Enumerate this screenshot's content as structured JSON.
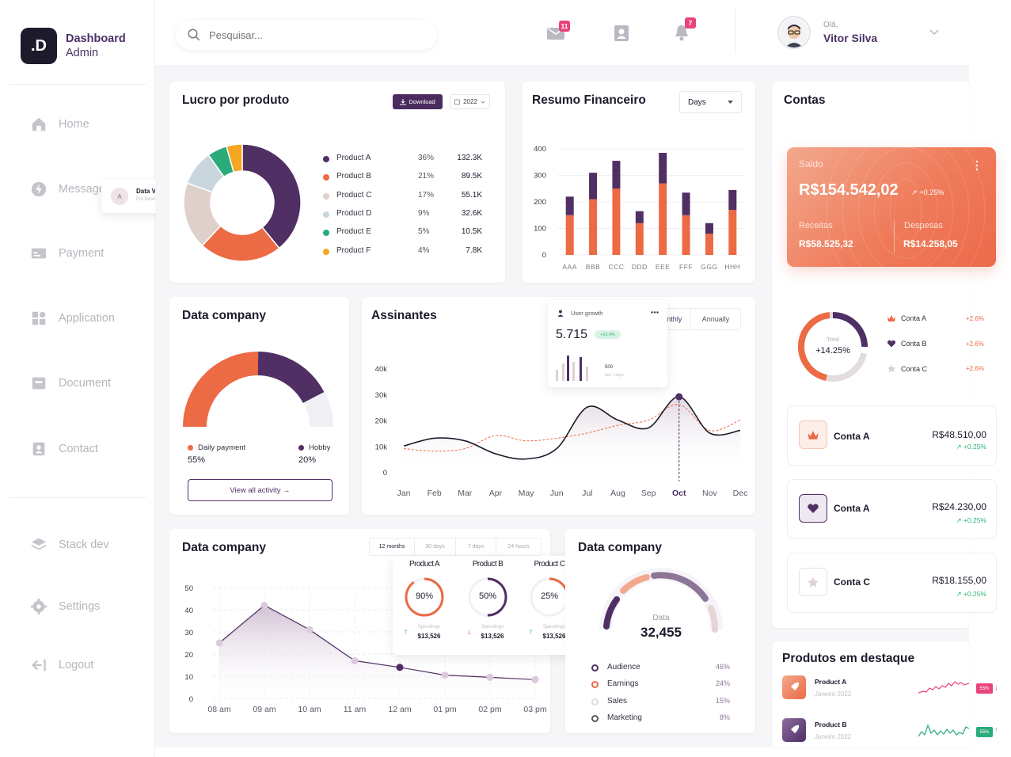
{
  "brand": {
    "logo": ".D",
    "title": "Dashboard",
    "subtitle": "Admin"
  },
  "nav": {
    "home": "Home",
    "message": "Message",
    "payment": "Payment",
    "application": "Application",
    "document": "Document",
    "contact": "Contact",
    "stack": "Stack dev",
    "settings": "Settings",
    "logout": "Logout"
  },
  "tooltip_data_view": {
    "avatar": "A",
    "title": "Data View",
    "subtitle": "Put Description"
  },
  "search": {
    "placeholder": "Pesquisar..."
  },
  "header": {
    "mail_badge": "11",
    "bell_badge": "7",
    "greeting": "Olá,",
    "user_name": "Vitor Silva"
  },
  "lucro": {
    "title": "Lucro por produto",
    "download": "Download",
    "year": "2022",
    "products": [
      {
        "name": "Product A",
        "pct": "36%",
        "value": "132.3K",
        "color": "#4f2f64"
      },
      {
        "name": "Product B",
        "pct": "21%",
        "value": "89.5K",
        "color": "#ec6a44"
      },
      {
        "name": "Product C",
        "pct": "17%",
        "value": "55.1K",
        "color": "#dfd0cc"
      },
      {
        "name": "Product D",
        "pct": "9%",
        "value": "32.6K",
        "color": "#c9d6de"
      },
      {
        "name": "Product E",
        "pct": "5%",
        "value": "10.5K",
        "color": "#2bab7a"
      },
      {
        "name": "Product F",
        "pct": "4%",
        "value": "7.8K",
        "color": "#f5a623"
      }
    ]
  },
  "chart_data": [
    {
      "type": "pie",
      "title": "Lucro por produto",
      "categories": [
        "Product A",
        "Product B",
        "Product C",
        "Product D",
        "Product E",
        "Product F"
      ],
      "values": [
        36,
        21,
        17,
        9,
        5,
        4
      ]
    },
    {
      "type": "bar",
      "title": "Resumo Financeiro",
      "categories": [
        "AAA",
        "BBB",
        "CCC",
        "DDD",
        "EEE",
        "FFF",
        "GGG",
        "HHH"
      ],
      "series": [
        {
          "values": [
            150,
            210,
            250,
            120,
            270,
            150,
            80,
            170
          ],
          "color": "#ec6a44"
        },
        {
          "values": [
            70,
            100,
            105,
            45,
            115,
            85,
            40,
            75
          ],
          "color": "#4f2f64"
        }
      ],
      "ylim": [
        0,
        400
      ],
      "yticks": [
        0,
        100,
        200,
        300,
        400
      ]
    },
    {
      "type": "line",
      "title": "Assinantes",
      "categories": [
        "Jan",
        "Feb",
        "Mar",
        "Apr",
        "May",
        "Jun",
        "Jul",
        "Aug",
        "Sep",
        "Oct",
        "Nov",
        "Dec"
      ],
      "series": [
        {
          "values": [
            10,
            13,
            12,
            7,
            5,
            9,
            25,
            20,
            17,
            29,
            15,
            16
          ],
          "color": "#1d1b2b"
        },
        {
          "values": [
            9,
            8,
            9,
            14,
            12,
            13,
            15,
            18,
            20,
            26,
            16,
            20
          ],
          "color": "#ec6a44"
        }
      ],
      "ylim": [
        0,
        40
      ],
      "yticks": [
        "0",
        "10k",
        "20k",
        "30k",
        "40k"
      ],
      "highlight": "Oct"
    },
    {
      "type": "area",
      "title": "Data company",
      "categories": [
        "08 am",
        "09 am",
        "10 am",
        "11 am",
        "12 am",
        "01 pm",
        "02 pm",
        "03 pm"
      ],
      "values": [
        25,
        42,
        31,
        17,
        14,
        10.5,
        9.5,
        8.5
      ],
      "ylim": [
        0,
        50
      ],
      "yticks": [
        0,
        10,
        20,
        30,
        40,
        50
      ]
    }
  ],
  "resumo": {
    "title": "Resumo Financeiro",
    "period": "Days"
  },
  "contas": {
    "title": "Contas",
    "saldo_label": "Saldo",
    "saldo": "R$154.542,02",
    "saldo_change": "+0.25%",
    "receitas_label": "Receitas",
    "receitas": "R$58.525,32",
    "despesas_label": "Despesas",
    "despesas": "R$14.258,05",
    "donut_label": "Total",
    "donut_value": "+14.25%",
    "legend": [
      {
        "name": "Conta A",
        "change": "+2.6%"
      },
      {
        "name": "Conta B",
        "change": "+2.6%"
      },
      {
        "name": "Conta C",
        "change": "+2.6%"
      }
    ],
    "cards": [
      {
        "name": "Conta A",
        "value": "R$48.510,00",
        "change": "+0.25%"
      },
      {
        "name": "Conta A",
        "value": "R$24.230,00",
        "change": "+0.25%"
      },
      {
        "name": "Conta C",
        "value": "R$18.155,00",
        "change": "+0.25%"
      }
    ]
  },
  "data_company_1": {
    "title": "Data company",
    "legend": [
      {
        "name": "Daily payment",
        "value": "55%"
      },
      {
        "name": "Hobby",
        "value": "20%"
      }
    ],
    "button": "View all activity →"
  },
  "assinantes": {
    "title": "Assinantes",
    "tab_monthly": "Monthly",
    "tab_annually": "Annually",
    "popup": {
      "title": "User growth",
      "value": "5.715",
      "badge": "+10.4%",
      "count": "500",
      "sub": "last 7 days"
    }
  },
  "data_company_2": {
    "title": "Data company",
    "tabs": [
      "12 months",
      "30 days",
      "7 days",
      "24 hours"
    ],
    "products": [
      {
        "name": "Product A",
        "pct": "90%",
        "label": "Spendings",
        "value": "$13,526",
        "trend": "up"
      },
      {
        "name": "Product B",
        "pct": "50%",
        "label": "Spendings",
        "value": "$13,526",
        "trend": "down"
      },
      {
        "name": "Product C",
        "pct": "25%",
        "label": "Spendings",
        "value": "$13,526",
        "trend": "up"
      }
    ]
  },
  "data_company_3": {
    "title": "Data company",
    "gauge_label": "Data",
    "gauge_value": "32,455",
    "legend": [
      {
        "name": "Audience",
        "pct": "46%",
        "color": "#4f2f64"
      },
      {
        "name": "Earnings",
        "pct": "24%",
        "color": "#ec6a44"
      },
      {
        "name": "Sales",
        "pct": "15%",
        "color": "#e3dcdc"
      },
      {
        "name": "Marketing",
        "pct": "8%",
        "color": "#5b5866"
      }
    ]
  },
  "destaque": {
    "title": "Produtos em destaque",
    "items": [
      {
        "name": "Product A",
        "date": "Janeiro 2022",
        "badge": "55%"
      },
      {
        "name": "Product B",
        "date": "Janeiro 2022",
        "badge": "55%"
      }
    ]
  }
}
